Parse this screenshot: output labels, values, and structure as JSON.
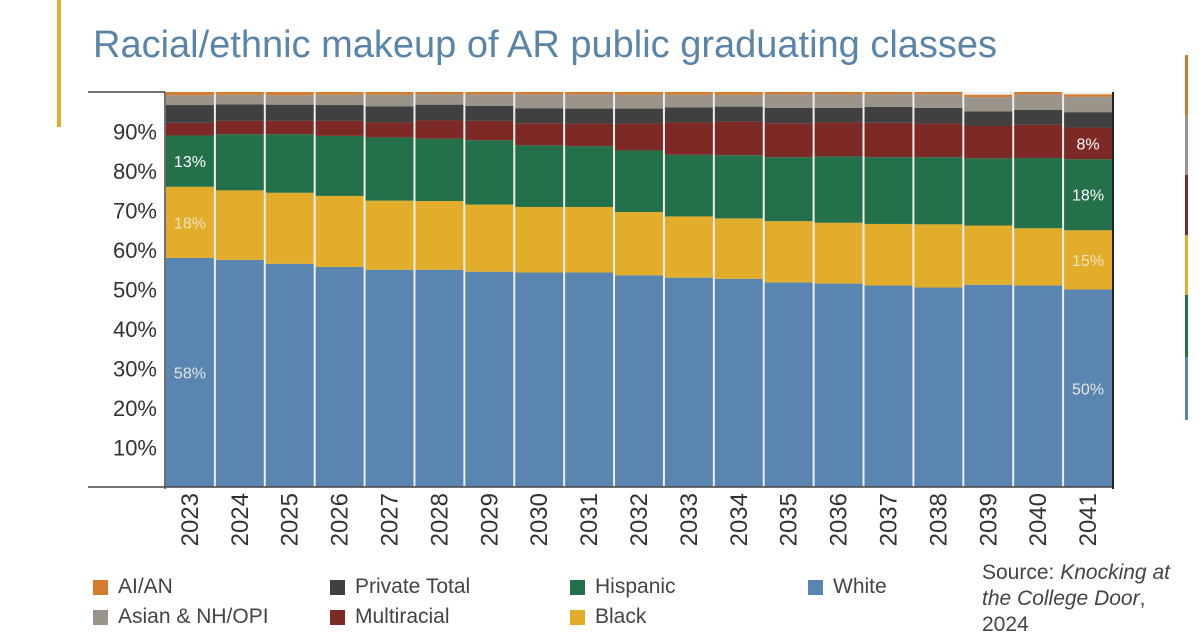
{
  "title": "Racial/ethnic makeup of AR public graduating classes",
  "source": {
    "prefix": "Source: ",
    "work": "Knocking at the College Door",
    "suffix": ", 2024"
  },
  "colors": {
    "aian": "#d47b2e",
    "asian": "#9b948b",
    "private": "#404040",
    "multiracial": "#7d2a26",
    "hispanic": "#23704a",
    "black": "#e2ad2b",
    "white": "#5a85b0",
    "accent": "#e2ad2b",
    "title": "#5b84a9"
  },
  "chart_data": {
    "type": "bar",
    "stacked": true,
    "title": "Racial/ethnic makeup of AR public graduating classes",
    "xlabel": "",
    "ylabel": "",
    "ylim": [
      0,
      100
    ],
    "yticks": [
      "10%",
      "20%",
      "30%",
      "40%",
      "50%",
      "60%",
      "70%",
      "80%",
      "90%"
    ],
    "categories": [
      "2023",
      "2024",
      "2025",
      "2026",
      "2027",
      "2028",
      "2029",
      "2030",
      "2031",
      "2032",
      "2033",
      "2034",
      "2035",
      "2036",
      "2037",
      "2038",
      "2039",
      "2040",
      "2041"
    ],
    "series": [
      {
        "name": "White",
        "key": "white",
        "values": [
          58,
          57.5,
          56.5,
          55.7,
          55,
          55,
          54.5,
          54.3,
          54.3,
          53.6,
          53,
          52.7,
          51.8,
          51.5,
          51,
          50.5,
          51.2,
          51,
          50
        ]
      },
      {
        "name": "Black",
        "key": "black",
        "values": [
          18,
          17.6,
          18,
          18,
          17.5,
          17.4,
          17,
          16.6,
          16.6,
          16,
          15.5,
          15.3,
          15.5,
          15.4,
          15.6,
          16,
          15,
          14.5,
          15
        ]
      },
      {
        "name": "Hispanic",
        "key": "hispanic",
        "values": [
          13,
          14.2,
          14.8,
          15.2,
          16,
          15.8,
          16.3,
          15.6,
          15.4,
          15.6,
          15.6,
          16,
          16.2,
          16.8,
          16.9,
          17,
          17,
          17.8,
          18
        ]
      },
      {
        "name": "Multiracial",
        "key": "multiracial",
        "values": [
          3.2,
          3.4,
          3.4,
          3.8,
          3.8,
          4.6,
          4.9,
          5.6,
          5.7,
          6.8,
          8.2,
          8.5,
          8.6,
          8.6,
          8.7,
          8.5,
          8.2,
          8.4,
          8
        ]
      },
      {
        "name": "Private Total",
        "key": "private",
        "values": [
          4.5,
          4.2,
          4.1,
          4,
          4.1,
          4,
          3.8,
          3.8,
          3.8,
          3.8,
          3.8,
          3.8,
          3.9,
          3.7,
          4,
          4,
          3.7,
          3.8,
          3.9
        ]
      },
      {
        "name": "Asian & NH/OPI",
        "key": "asian",
        "values": [
          2.5,
          2.4,
          2.4,
          2.6,
          2.9,
          2.6,
          2.9,
          3.5,
          3.6,
          3.5,
          3.2,
          3,
          3.4,
          3.4,
          3.2,
          3.4,
          3.6,
          3.9,
          3.9
        ]
      },
      {
        "name": "AI/AN",
        "key": "aian",
        "values": [
          0.8,
          0.7,
          0.8,
          0.7,
          0.7,
          0.6,
          0.6,
          0.6,
          0.6,
          0.7,
          0.7,
          0.7,
          0.6,
          0.6,
          0.6,
          0.6,
          0.6,
          0.6,
          0.6
        ]
      }
    ],
    "data_labels": [
      {
        "category": "2023",
        "series": "white",
        "text": "58%"
      },
      {
        "category": "2023",
        "series": "black",
        "text": "18%"
      },
      {
        "category": "2023",
        "series": "hispanic",
        "text": "13%"
      },
      {
        "category": "2041",
        "series": "white",
        "text": "50%"
      },
      {
        "category": "2041",
        "series": "black",
        "text": "15%"
      },
      {
        "category": "2041",
        "series": "hispanic",
        "text": "18%"
      },
      {
        "category": "2041",
        "series": "multiracial",
        "text": "8%"
      }
    ],
    "legend": [
      {
        "label": "AI/AN",
        "key": "aian"
      },
      {
        "label": "Asian & NH/OPI",
        "key": "asian"
      },
      {
        "label": "Private Total",
        "key": "private"
      },
      {
        "label": "Multiracial",
        "key": "multiracial"
      },
      {
        "label": "Hispanic",
        "key": "hispanic"
      },
      {
        "label": "Black",
        "key": "black"
      },
      {
        "label": "White",
        "key": "white"
      }
    ]
  }
}
